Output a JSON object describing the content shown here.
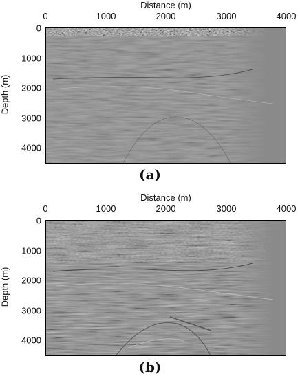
{
  "figure": {
    "panels": [
      {
        "id": "a",
        "caption": "(a)",
        "x_axis_title": "Distance (m)",
        "y_axis_title": "Depth (m)",
        "x_ticks": [
          "0",
          "1000",
          "2000",
          "3000",
          "4000"
        ],
        "y_ticks": [
          "0",
          "1000",
          "2000",
          "3000",
          "4000"
        ]
      },
      {
        "id": "b",
        "caption": "(b)",
        "x_axis_title": "Distance (m)",
        "y_axis_title": "Depth (m)",
        "x_ticks": [
          "0",
          "1000",
          "2000",
          "3000",
          "4000"
        ],
        "y_ticks": [
          "0",
          "1000",
          "2000",
          "3000",
          "4000"
        ]
      }
    ],
    "colors": {
      "background_gray": "#8a8a8a",
      "reflector_dark": "#3a3a3a",
      "reflector_light": "#c8c8c8"
    }
  }
}
